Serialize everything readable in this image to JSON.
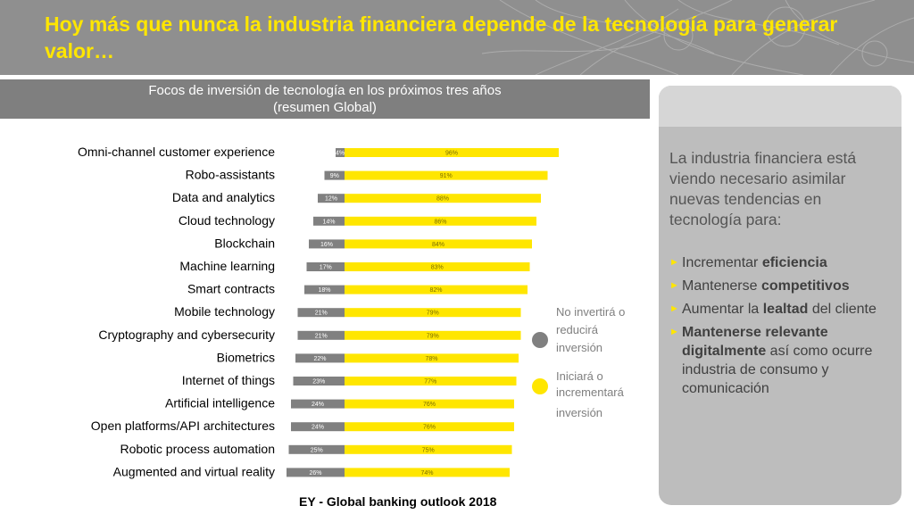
{
  "header": {
    "title": "Hoy más que nunca la industria financiera depende de la tecnología para generar valor…"
  },
  "chart_title": {
    "line1": "Focos de inversión de tecnología en los próximos tres años",
    "line2": "(resumen Global)"
  },
  "chart_data": {
    "type": "bar",
    "orientation": "horizontal-diverging",
    "title": "Focos de inversión de tecnología en los próximos tres años (resumen Global)",
    "categories": [
      "Omni-channel customer experience",
      "Robo-assistants",
      "Data and analytics",
      "Cloud technology",
      "Blockchain",
      "Machine learning",
      "Smart contracts",
      "Mobile technology",
      "Cryptography and cybersecurity",
      "Biometrics",
      "Internet of things",
      "Artificial intelligence",
      "Open platforms/API architectures",
      "Robotic process automation",
      "Augmented and virtual reality"
    ],
    "series": [
      {
        "name": "No invertirá o reducirá inversión",
        "color": "#808080",
        "values": [
          4,
          9,
          12,
          14,
          16,
          17,
          18,
          21,
          21,
          22,
          23,
          24,
          24,
          25,
          26
        ],
        "labels": [
          "4%",
          "9%",
          "12%",
          "14%",
          "16%",
          "17%",
          "18%",
          "21%",
          "21%",
          "22%",
          "23%",
          "24%",
          "24%",
          "25%",
          "26%"
        ]
      },
      {
        "name": "Iniciará o incrementará inversión",
        "color": "#ffe600",
        "values": [
          96,
          91,
          88,
          86,
          84,
          83,
          82,
          79,
          79,
          78,
          77,
          76,
          76,
          75,
          74
        ],
        "labels": [
          "96%",
          "91%",
          "88%",
          "86%",
          "84%",
          "83%",
          "82%",
          "79%",
          "79%",
          "78%",
          "77%",
          "76%",
          "76%",
          "75%",
          "74%"
        ]
      }
    ],
    "xlim": [
      0,
      100
    ],
    "grid": false,
    "legend": "right"
  },
  "legend": {
    "item1": {
      "line1": "No invertirá o",
      "line2": "reducirá",
      "line3": "inversión",
      "color": "#808080"
    },
    "item2": {
      "line1": "Iniciará o",
      "line2": "incrementará",
      "line3": "inversión",
      "color": "#ffe600"
    }
  },
  "source": "EY - Global banking outlook 2018",
  "panel": {
    "intro": "La industria financiera está viendo necesario asimilar nuevas tendencias en tecnología para:",
    "bullets": [
      {
        "pre": "Incrementar ",
        "bold": "eficiencia",
        "post": ""
      },
      {
        "pre": "Mantenerse ",
        "bold": "competitivos",
        "post": ""
      },
      {
        "pre": "Aumentar la ",
        "bold": "lealtad",
        "post": " del cliente"
      },
      {
        "pre": "",
        "bold": "Mantenerse relevante digitalmente",
        "post": " así como ocurre industria de consumo y comunicación"
      }
    ],
    "arrow_glyph": "►"
  }
}
